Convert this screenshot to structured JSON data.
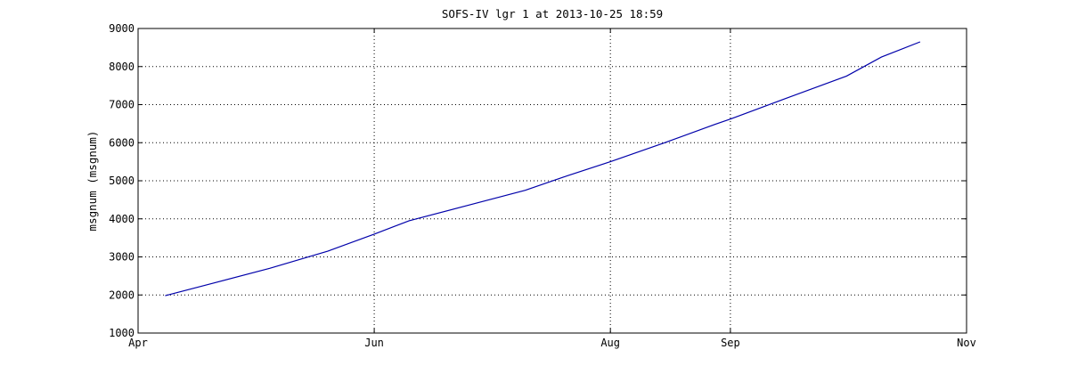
{
  "chart_data": {
    "type": "line",
    "title": "SOFS-IV lgr 1 at 2013-10-25 18:59",
    "xlabel": "",
    "ylabel": "msgnum (msgnum)",
    "x_ticks": [
      "Apr",
      "Jun",
      "Aug",
      "Sep",
      "Nov"
    ],
    "xlim": [
      "2013-04-01",
      "2013-11-01"
    ],
    "ylim": [
      1000,
      9000
    ],
    "y_ticks": [
      1000,
      2000,
      3000,
      4000,
      5000,
      6000,
      7000,
      8000,
      9000
    ],
    "grid": true,
    "line_color": "#0000aa",
    "series": [
      {
        "x": [
          "2013-04-08",
          "2013-04-20",
          "2013-05-05",
          "2013-05-20",
          "2013-06-01",
          "2013-06-10",
          "2013-06-25",
          "2013-07-10",
          "2013-07-20",
          "2013-08-01",
          "2013-08-15",
          "2013-08-28",
          "2013-09-01",
          "2013-09-15",
          "2013-10-01",
          "2013-10-10",
          "2013-10-20"
        ],
        "values": [
          1980,
          2300,
          2700,
          3150,
          3600,
          3950,
          4350,
          4750,
          5100,
          5500,
          6000,
          6480,
          6620,
          7150,
          7750,
          8250,
          8650
        ]
      }
    ]
  }
}
